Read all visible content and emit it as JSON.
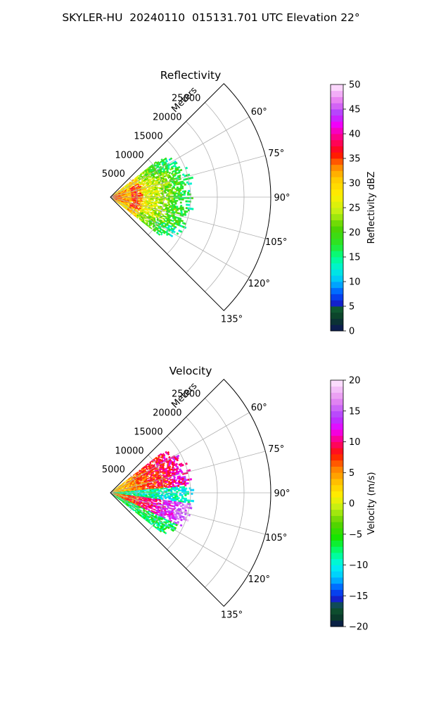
{
  "figure": {
    "suptitle": "SKYLER-HU  20240110  015131.701 UTC Elevation 22°"
  },
  "chart_data": [
    {
      "type": "heatmap",
      "projection": "polar-sector",
      "title": "Reflectivity",
      "range_label": "Meters",
      "range_ticks": [
        5000,
        10000,
        15000,
        20000,
        25000
      ],
      "range_max": 30000,
      "azimuth_ticks": [
        "60°",
        "75°",
        "90°",
        "105°",
        "120°",
        "135°"
      ],
      "azimuth_range_deg": [
        45,
        135
      ],
      "grid": true,
      "data_extent_m": 15000,
      "colorbar": {
        "label": "Reflectivity dBZ",
        "range": [
          0,
          50
        ],
        "ticks": [
          0,
          5,
          10,
          15,
          20,
          25,
          30,
          35,
          40,
          45,
          50
        ]
      },
      "field_description": "Echo concentrated within ~15 km; strongest (30-40 dBZ) near radar, 15-25 dBZ farther out"
    },
    {
      "type": "heatmap",
      "projection": "polar-sector",
      "title": "Velocity",
      "range_label": "Meters",
      "range_ticks": [
        5000,
        10000,
        15000,
        20000,
        25000
      ],
      "range_max": 30000,
      "azimuth_ticks": [
        "60°",
        "75°",
        "90°",
        "105°",
        "120°",
        "135°"
      ],
      "azimuth_range_deg": [
        45,
        135
      ],
      "grid": true,
      "data_extent_m": 15000,
      "colorbar": {
        "label": "Velocity (m/s)",
        "range": [
          -20,
          20
        ],
        "ticks": [
          -20,
          -15,
          -10,
          -5,
          0,
          5,
          10,
          15,
          20
        ]
      },
      "field_description": "Positive (warm colors) in outer/lower azimuths, negative (green/cyan) near 90° and 130°"
    }
  ]
}
